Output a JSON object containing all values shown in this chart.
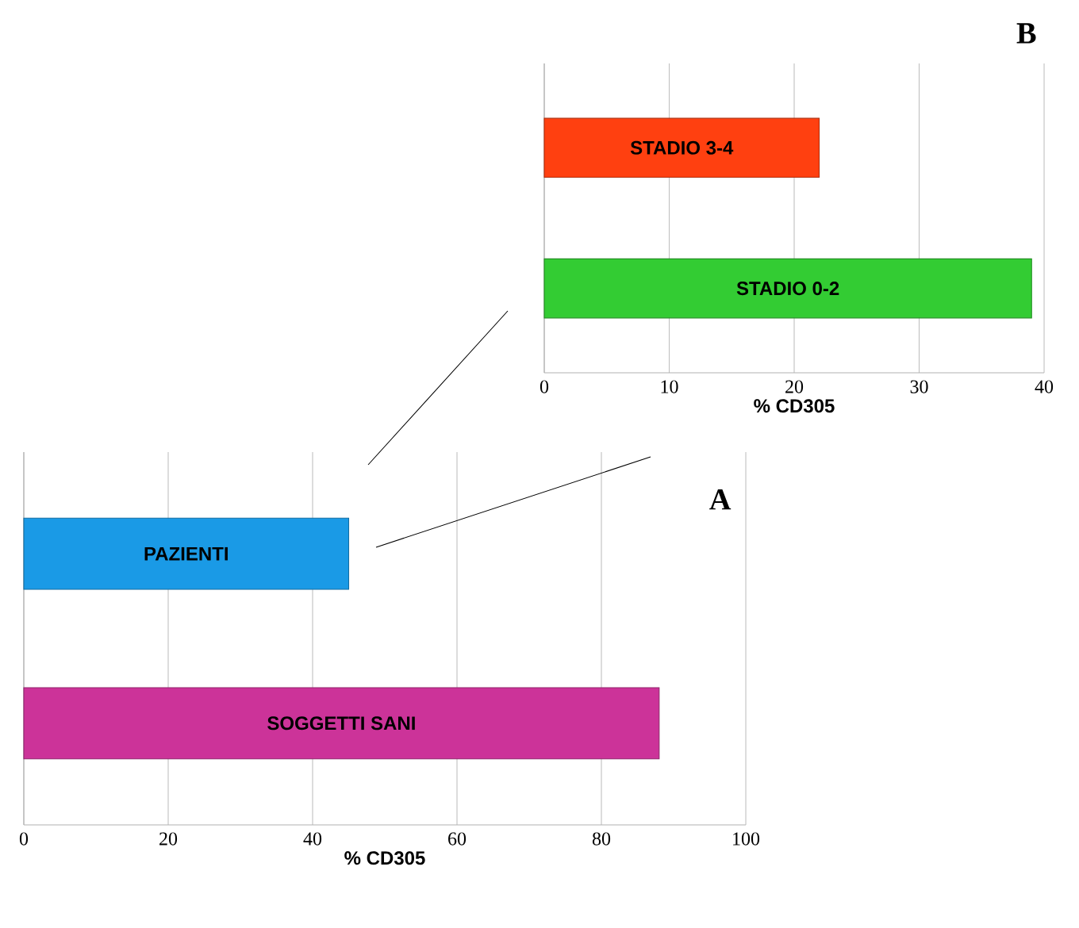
{
  "chart_data": [
    {
      "type": "bar",
      "orientation": "horizontal",
      "categories": [
        "STADIO 3-4",
        "STADIO 0-2"
      ],
      "values": [
        22,
        39
      ],
      "colors": [
        "#ff4010",
        "#33cc33"
      ],
      "xlabel": "% CD305",
      "xlim": [
        0,
        40
      ],
      "xticks": [
        0,
        10,
        20,
        30,
        40
      ],
      "grid": "x",
      "annotations": [
        "B"
      ]
    },
    {
      "type": "bar",
      "orientation": "horizontal",
      "categories": [
        "PAZIENTI",
        "SOGGETTI SANI"
      ],
      "values": [
        45,
        88
      ],
      "colors": [
        "#1a9ae6",
        "#cc3399"
      ],
      "xlabel": "% CD305",
      "xlim": [
        0,
        100
      ],
      "xticks": [
        0,
        20,
        40,
        60,
        80,
        100
      ],
      "grid": "x",
      "annotations": [
        "A"
      ]
    }
  ]
}
